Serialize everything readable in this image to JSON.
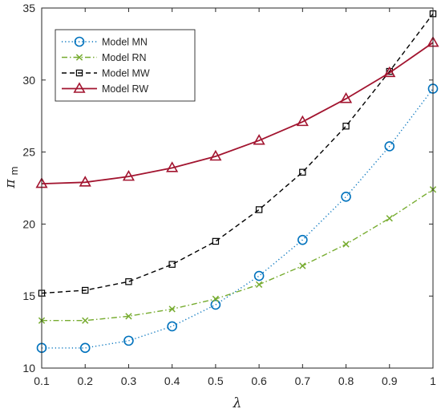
{
  "chart_data": {
    "type": "line",
    "title": "",
    "xlabel": "λ",
    "ylabel": "π",
    "ylabel_subscript": "m",
    "x": [
      0.1,
      0.2,
      0.3,
      0.4,
      0.5,
      0.6,
      0.7,
      0.8,
      0.9,
      1.0
    ],
    "xlim": [
      0.1,
      1
    ],
    "ylim": [
      10,
      35
    ],
    "xticks": [
      0.1,
      0.2,
      0.3,
      0.4,
      0.5,
      0.6,
      0.7,
      0.8,
      0.9,
      1
    ],
    "xtick_labels": [
      "0.1",
      "0.2",
      "0.3",
      "0.4",
      "0.5",
      "0.6",
      "0.7",
      "0.8",
      "0.9",
      "1"
    ],
    "yticks": [
      10,
      15,
      20,
      25,
      30,
      35
    ],
    "ytick_labels": [
      "10",
      "15",
      "20",
      "25",
      "30",
      "35"
    ],
    "grid": false,
    "legend_position": "top-left",
    "series": [
      {
        "name": "Model MN",
        "color": "#0072BD",
        "line_style": "dotted",
        "marker": "circle",
        "values": [
          11.4,
          11.4,
          11.9,
          12.9,
          14.4,
          16.4,
          18.9,
          21.9,
          25.4,
          29.4
        ]
      },
      {
        "name": "Model RN",
        "color": "#77AC30",
        "line_style": "dash-dot",
        "marker": "x",
        "values": [
          13.3,
          13.3,
          13.6,
          14.1,
          14.8,
          15.8,
          17.1,
          18.6,
          20.4,
          22.4
        ]
      },
      {
        "name": "Model MW",
        "color": "#000000",
        "line_style": "dashed",
        "marker": "square",
        "values": [
          15.2,
          15.4,
          16.0,
          17.2,
          18.8,
          21.0,
          23.6,
          26.8,
          30.6,
          34.6
        ]
      },
      {
        "name": "Model RW",
        "color": "#A2142F",
        "line_style": "solid",
        "marker": "triangle",
        "values": [
          22.8,
          22.9,
          23.3,
          23.9,
          24.7,
          25.8,
          27.1,
          28.7,
          30.5,
          32.6
        ]
      }
    ]
  }
}
